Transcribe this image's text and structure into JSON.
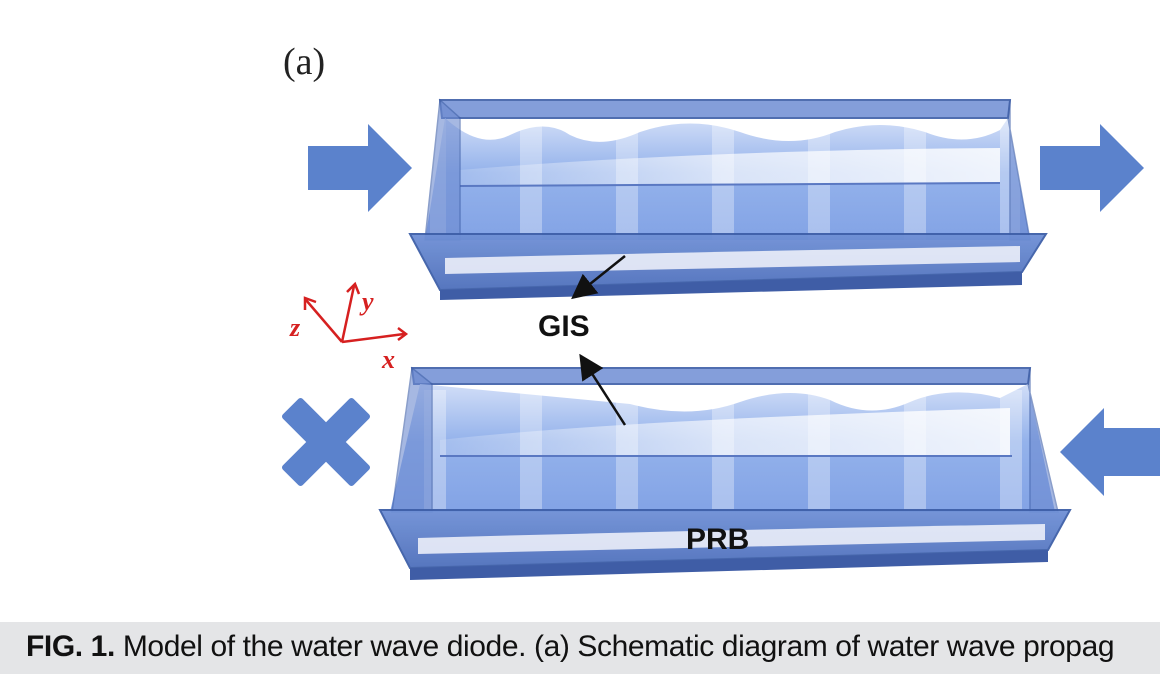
{
  "figure": {
    "panel_label": "(a)",
    "label_gis": "GIS",
    "label_prb": "PRB",
    "axes": {
      "x": "x",
      "y": "y",
      "z": "z"
    },
    "colors": {
      "water": "#7fa3e6",
      "frame": "#3e5fa8",
      "arrow": "#5b82cc",
      "axis": "#d62020"
    },
    "icons": [
      "arrow-right-icon",
      "cross-icon",
      "arrow-left-icon"
    ]
  },
  "caption": {
    "label": "FIG. 1.",
    "text": " Model of the water wave diode. (a) Schematic diagram of water wave propag"
  }
}
